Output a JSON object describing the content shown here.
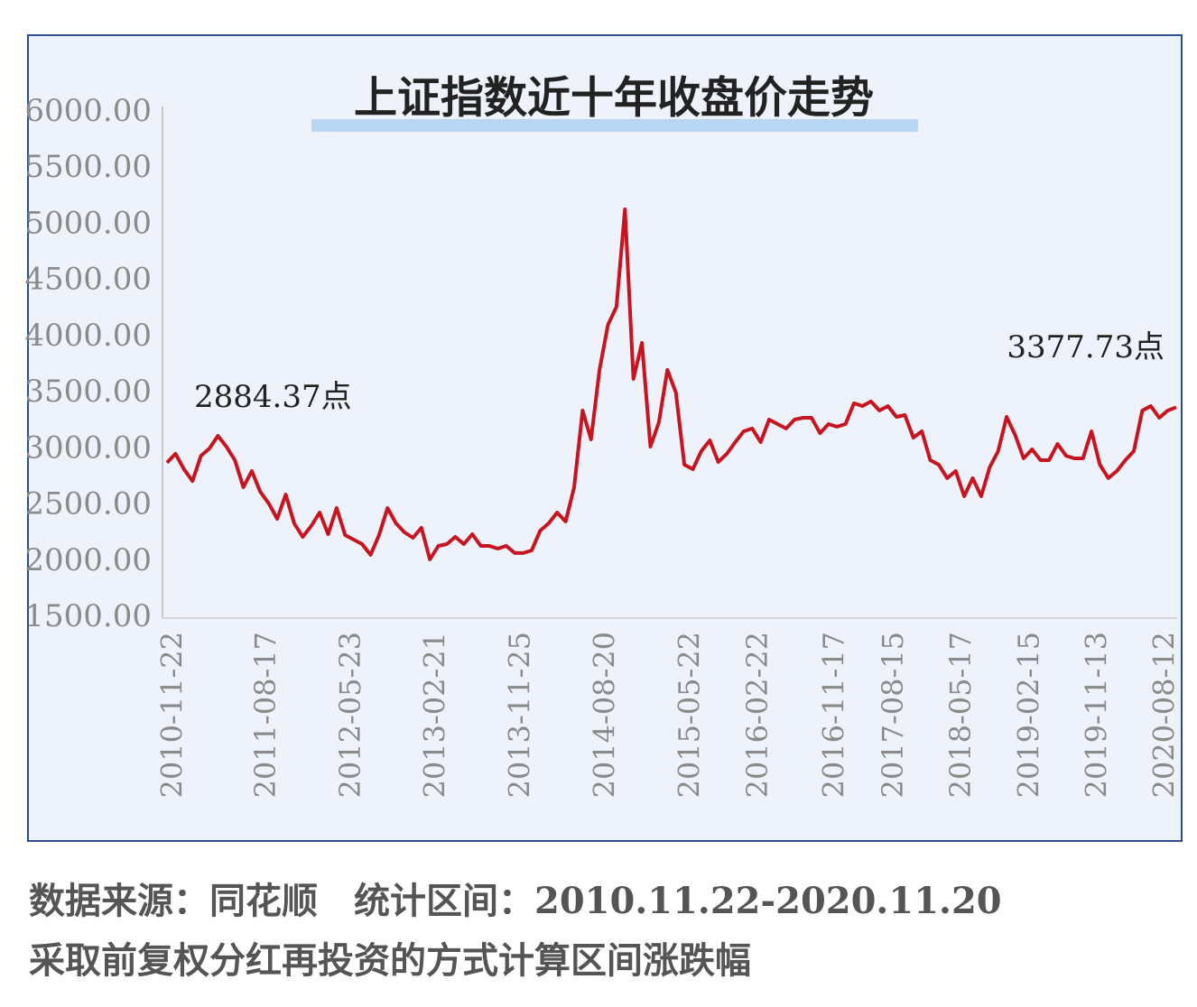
{
  "chart_data": {
    "type": "line",
    "title": "上证指数近十年收盘价走势",
    "categories": [
      "2010-11-22",
      null,
      null,
      null,
      null,
      null,
      null,
      null,
      null,
      null,
      null,
      "2011-08-17",
      null,
      null,
      null,
      null,
      null,
      null,
      null,
      null,
      null,
      "2012-05-23",
      null,
      null,
      null,
      null,
      null,
      null,
      null,
      null,
      null,
      "2013-02-21",
      null,
      null,
      null,
      null,
      null,
      null,
      null,
      null,
      null,
      "2013-11-25",
      null,
      null,
      null,
      null,
      null,
      null,
      null,
      null,
      null,
      "2014-08-20",
      null,
      null,
      null,
      null,
      null,
      null,
      null,
      null,
      null,
      "2015-05-22",
      null,
      null,
      null,
      null,
      null,
      null,
      null,
      "2016-02-22",
      null,
      null,
      null,
      null,
      null,
      null,
      null,
      null,
      "2016-11-17",
      null,
      null,
      null,
      null,
      null,
      null,
      "2017-08-15",
      null,
      null,
      null,
      null,
      null,
      null,
      null,
      "2018-05-17",
      null,
      null,
      null,
      null,
      null,
      null,
      null,
      "2019-02-15",
      null,
      null,
      null,
      null,
      null,
      null,
      null,
      "2019-11-13",
      null,
      null,
      null,
      null,
      null,
      null,
      null,
      "2020-08-12",
      null,
      null
    ],
    "values": [
      2884.37,
      2963,
      2826,
      2721,
      2946,
      3011,
      3123,
      3027,
      2906,
      2665,
      2810,
      2625,
      2521,
      2384,
      2601,
      2344,
      2223,
      2320,
      2440,
      2247,
      2480,
      2239,
      2199,
      2159,
      2063,
      2239,
      2480,
      2344,
      2263,
      2215,
      2304,
      2022,
      2143,
      2159,
      2223,
      2159,
      2247,
      2143,
      2143,
      2119,
      2143,
      2079,
      2079,
      2103,
      2279,
      2344,
      2440,
      2360,
      2665,
      3348,
      3091,
      3710,
      4112,
      4272,
      5140,
      3630,
      3951,
      3027,
      3244,
      3710,
      3509,
      2866,
      2826,
      2987,
      3083,
      2890,
      2963,
      3067,
      3163,
      3188,
      3067,
      3268,
      3228,
      3188,
      3268,
      3284,
      3284,
      3147,
      3228,
      3204,
      3228,
      3413,
      3388,
      3429,
      3348,
      3388,
      3292,
      3308,
      3107,
      3163,
      2906,
      2866,
      2746,
      2810,
      2585,
      2746,
      2585,
      2842,
      2987,
      3292,
      3131,
      2922,
      3003,
      2906,
      2906,
      3051,
      2946,
      2922,
      2922,
      3163,
      2866,
      2746,
      2810,
      2906,
      2987,
      3348,
      3388,
      3284,
      3348,
      3377.73
    ],
    "color": "#c8141e",
    "ylim": [
      1500,
      6000
    ],
    "yticks": [
      {
        "value": 1500,
        "label": "1500.00"
      },
      {
        "value": 2000,
        "label": "2000.00"
      },
      {
        "value": 2500,
        "label": "2500.00"
      },
      {
        "value": 3000,
        "label": "3000.00"
      },
      {
        "value": 3500,
        "label": "3500.00"
      },
      {
        "value": 4000,
        "label": "4000.00"
      },
      {
        "value": 4500,
        "label": "4500.00"
      },
      {
        "value": 5000,
        "label": "5000.00"
      },
      {
        "value": 5500,
        "label": "5500.00"
      },
      {
        "value": 6000,
        "label": "6000.00"
      }
    ],
    "grid": false,
    "annotations": [
      "2884.37点",
      "3377.73点"
    ],
    "footnotes": [
      "数据来源：同花顺　统计区间：2010.11.22-2020.11.20",
      "采取前复权分红再投资的方式计算区间涨跌幅"
    ]
  }
}
